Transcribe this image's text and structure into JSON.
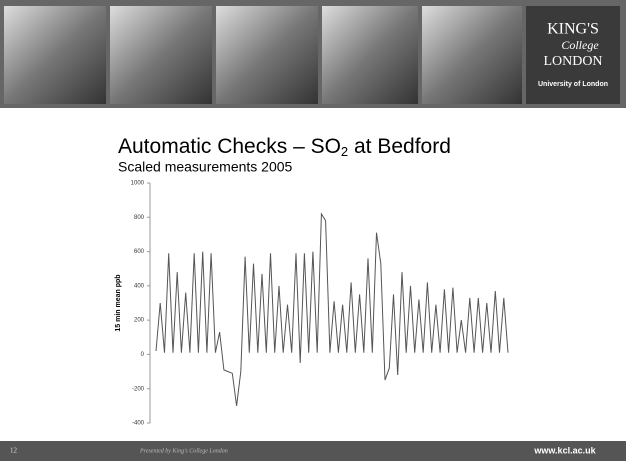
{
  "header": {
    "logo": {
      "line1": "KING'S",
      "line2": "College",
      "line3": "LONDON",
      "line4": "University of London"
    }
  },
  "chart_data": {
    "type": "line",
    "title": {
      "before": "Automatic Checks – SO",
      "sub": "2",
      "after": " at Bedford"
    },
    "subtitle": "Scaled measurements 2005",
    "y_label": "15 min mean ppb",
    "ylim": [
      -400,
      1000
    ],
    "yticks": [
      -400,
      -200,
      0,
      200,
      400,
      600,
      800,
      1000
    ],
    "categories": [
      null,
      null,
      null,
      null,
      null,
      null,
      null,
      null,
      null,
      null,
      null,
      null,
      null,
      null,
      null,
      null,
      null,
      null,
      null,
      null,
      null,
      null,
      null,
      null,
      null,
      null,
      null,
      null,
      null,
      null,
      null,
      null,
      null,
      null,
      null,
      null,
      null,
      null,
      null,
      null,
      null,
      null,
      null,
      null,
      null,
      null,
      null,
      null,
      null,
      null,
      null,
      null,
      null,
      null,
      null,
      null,
      null,
      null,
      null,
      null,
      null,
      null,
      null,
      null,
      null,
      null,
      null,
      null,
      null,
      null,
      null,
      null,
      null,
      null,
      null,
      null,
      null,
      null,
      null,
      null,
      null,
      null,
      null,
      null
    ],
    "series": [
      {
        "color": "#555555",
        "values": [
          20,
          300,
          10,
          590,
          10,
          480,
          10,
          360,
          10,
          590,
          10,
          600,
          10,
          590,
          10,
          130,
          -90,
          -100,
          -110,
          -300,
          -100,
          570,
          10,
          530,
          10,
          470,
          10,
          590,
          10,
          400,
          10,
          290,
          10,
          590,
          -50,
          590,
          10,
          600,
          10,
          820,
          780,
          10,
          310,
          10,
          290,
          10,
          420,
          10,
          350,
          10,
          560,
          10,
          710,
          530,
          -150,
          -80,
          350,
          -120,
          480,
          10,
          400,
          10,
          320,
          10,
          420,
          10,
          290,
          10,
          380,
          10,
          390,
          10,
          200,
          10,
          330,
          10,
          330,
          10,
          300,
          10,
          370,
          10,
          330,
          10
        ]
      }
    ]
  },
  "footer": {
    "page": "12",
    "presenter": "Presented by King's College London",
    "url": "www.kcl.ac.uk"
  }
}
